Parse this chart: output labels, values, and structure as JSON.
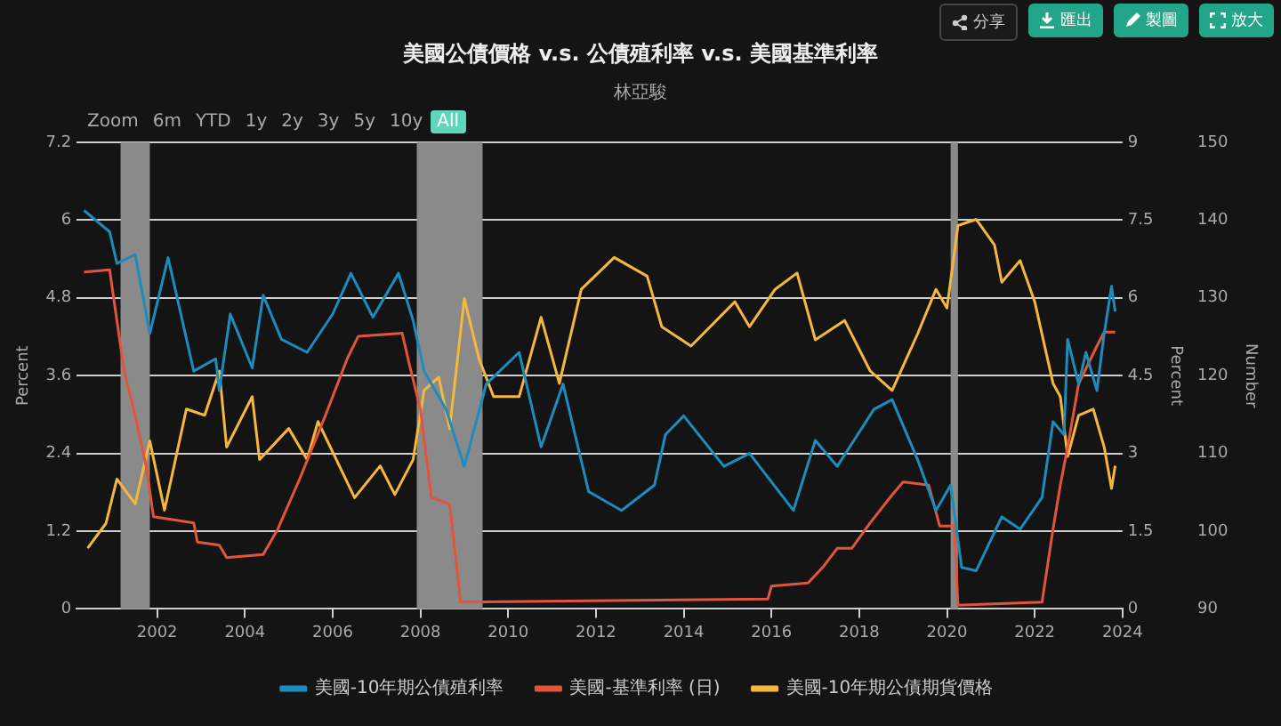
{
  "chart_data": {
    "type": "line",
    "title": "美國公債價格 v.s. 公債殖利率 v.s. 美國基準利率",
    "subtitle": "林亞駿",
    "annotations": [
      "分享",
      "匯出",
      "製圖",
      "放大",
      "Zoom",
      "6m",
      "YTD",
      "1y",
      "2y",
      "3y",
      "5y",
      "10y",
      "All"
    ],
    "ylabel": "Percent",
    "y2label": "Percent",
    "y3label": "Number",
    "xlim": [
      "2000-03",
      "2024-01"
    ],
    "xticks": [
      "2002",
      "2004",
      "2006",
      "2008",
      "2010",
      "2012",
      "2014",
      "2016",
      "2018",
      "2020",
      "2022",
      "2024"
    ],
    "ylim": [
      0,
      7.2
    ],
    "yticks": [
      0,
      1.2,
      2.4,
      3.6,
      4.8,
      6,
      7.2
    ],
    "y2lim": [
      0,
      9
    ],
    "y2ticks": [
      0,
      1.5,
      3,
      4.5,
      6,
      7.5,
      9
    ],
    "y3lim": [
      90,
      150
    ],
    "y3ticks": [
      90,
      100,
      110,
      120,
      130,
      140,
      150
    ],
    "grid": "y",
    "legend": "bottom",
    "marker": "none",
    "line_style": "solid",
    "bands": [
      {
        "axis": "x",
        "from": "2001-03",
        "to": "2001-11",
        "color": "#8a8a8a"
      },
      {
        "axis": "x",
        "from": "2007-12",
        "to": "2009-06",
        "color": "#8a8a8a"
      },
      {
        "axis": "x",
        "from": "2020-02",
        "to": "2020-04",
        "color": "#8a8a8a"
      }
    ],
    "series": [
      {
        "name": "美國-10年期公債殖利率",
        "color": "#1e8bbd",
        "x": [
          "2000-05",
          "2000-12",
          "2001-02",
          "2001-07",
          "2001-11",
          "2002-04",
          "2002-11",
          "2003-05",
          "2003-06",
          "2003-09",
          "2004-03",
          "2004-06",
          "2004-11",
          "2005-06",
          "2006-01",
          "2006-06",
          "2006-12",
          "2007-07",
          "2007-11",
          "2008-02",
          "2008-08",
          "2009-01",
          "2009-07",
          "2010-04",
          "2010-10",
          "2011-04",
          "2011-11",
          "2012-08",
          "2013-05",
          "2013-08",
          "2014-01",
          "2014-12",
          "2015-07",
          "2016-07",
          "2017-01",
          "2017-07",
          "2018-05",
          "2018-10",
          "2019-05",
          "2019-10",
          "2020-02",
          "2020-05",
          "2020-09",
          "2021-04",
          "2021-09",
          "2022-03",
          "2022-06",
          "2022-09",
          "2022-10",
          "2023-01",
          "2023-03",
          "2023-06",
          "2023-08",
          "2023-10",
          "2023-11"
        ],
        "values": [
          6.15,
          5.82,
          5.33,
          5.47,
          4.25,
          5.42,
          3.67,
          3.86,
          3.37,
          4.55,
          3.72,
          4.84,
          4.16,
          3.96,
          4.55,
          5.18,
          4.5,
          5.18,
          4.45,
          3.67,
          3.08,
          2.2,
          3.47,
          3.96,
          2.5,
          3.47,
          1.81,
          1.52,
          1.91,
          2.69,
          2.98,
          2.2,
          2.4,
          1.52,
          2.6,
          2.2,
          3.08,
          3.23,
          2.3,
          1.52,
          1.91,
          0.64,
          0.59,
          1.42,
          1.23,
          1.72,
          2.89,
          2.69,
          4.16,
          3.47,
          3.96,
          3.37,
          4.25,
          4.98,
          4.59
        ]
      },
      {
        "name": "美國-基準利率 (日)",
        "color": "#e0553b",
        "axis": "y2",
        "x": [
          "2000-05",
          "2000-12",
          "2001-02",
          "2001-04",
          "2001-07",
          "2001-10",
          "2001-12",
          "2002-11",
          "2002-12",
          "2003-06",
          "2003-08",
          "2004-06",
          "2004-10",
          "2005-04",
          "2005-11",
          "2006-05",
          "2006-08",
          "2007-08",
          "2007-10",
          "2008-01",
          "2008-04",
          "2008-09",
          "2008-12",
          "2015-12",
          "2016-01",
          "2016-11",
          "2017-03",
          "2017-07",
          "2017-11",
          "2018-04",
          "2018-10",
          "2019-01",
          "2019-08",
          "2019-11",
          "2020-03",
          "2020-04",
          "2022-03",
          "2022-06",
          "2022-08",
          "2022-10",
          "2023-01",
          "2023-06",
          "2023-08",
          "2023-11"
        ],
        "values": [
          6.5,
          6.54,
          5.56,
          4.58,
          3.73,
          2.75,
          1.78,
          1.66,
          1.29,
          1.23,
          0.99,
          1.05,
          1.54,
          2.51,
          3.73,
          4.83,
          5.26,
          5.32,
          4.71,
          3.85,
          2.15,
          2.02,
          0.13,
          0.19,
          0.44,
          0.5,
          0.8,
          1.17,
          1.17,
          1.66,
          2.2,
          2.45,
          2.39,
          1.6,
          1.6,
          0.07,
          0.13,
          1.54,
          2.39,
          3.12,
          4.34,
          5.07,
          5.34,
          5.34
        ]
      },
      {
        "name": "美國-10年期公債期貨價格",
        "color": "#f5b83d",
        "axis": "y3",
        "x": [
          "2000-06",
          "2000-11",
          "2001-02",
          "2001-07",
          "2001-11",
          "2002-03",
          "2002-09",
          "2003-02",
          "2003-06",
          "2003-08",
          "2004-03",
          "2004-05",
          "2005-01",
          "2005-06",
          "2005-09",
          "2006-07",
          "2007-02",
          "2007-06",
          "2007-11",
          "2008-02",
          "2008-06",
          "2008-09",
          "2009-01",
          "2009-05",
          "2009-09",
          "2010-04",
          "2010-10",
          "2011-03",
          "2011-09",
          "2012-06",
          "2013-03",
          "2013-07",
          "2014-03",
          "2015-03",
          "2015-07",
          "2016-02",
          "2016-08",
          "2017-01",
          "2017-09",
          "2018-04",
          "2018-10",
          "2019-05",
          "2019-10",
          "2020-01",
          "2020-04",
          "2020-09",
          "2021-02",
          "2021-04",
          "2021-09",
          "2022-01",
          "2022-06",
          "2022-08",
          "2022-10",
          "2023-01",
          "2023-05",
          "2023-08",
          "2023-10",
          "2023-11"
        ],
        "values": [
          97.8,
          101.0,
          106.7,
          103.5,
          111.6,
          102.7,
          115.7,
          114.9,
          120.6,
          110.8,
          117.3,
          109.2,
          113.2,
          109.2,
          114.1,
          104.3,
          108.4,
          104.7,
          109.2,
          118.1,
          119.8,
          113.2,
          129.9,
          122.2,
          117.3,
          117.3,
          127.5,
          119.0,
          131.1,
          135.2,
          132.8,
          126.3,
          123.8,
          129.5,
          126.3,
          131.1,
          133.2,
          124.6,
          127.1,
          120.6,
          118.1,
          125.4,
          131.1,
          128.7,
          139.3,
          140.1,
          136.8,
          132.0,
          134.8,
          129.5,
          119.0,
          117.3,
          109.6,
          114.9,
          115.7,
          110.8,
          105.5,
          108.4
        ]
      }
    ]
  }
}
